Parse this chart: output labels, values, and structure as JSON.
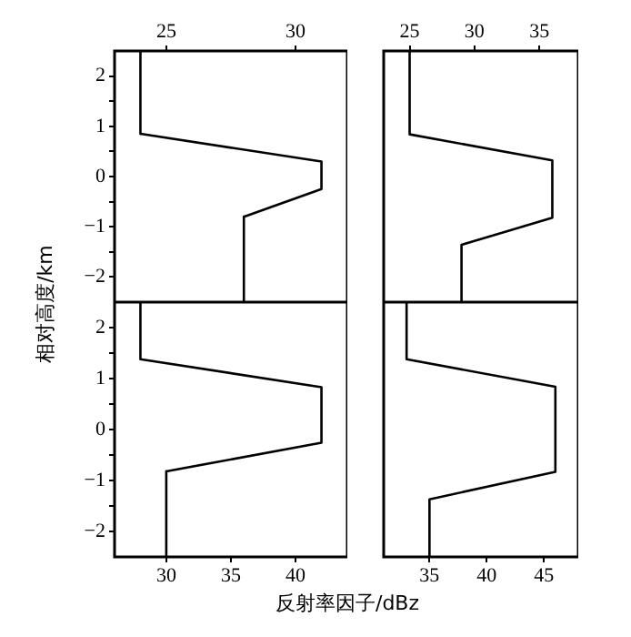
{
  "chart_data": [
    {
      "type": "line",
      "ylabel": "相对高度/km",
      "xlim": [
        23,
        32
      ],
      "xticks": [
        25,
        30
      ],
      "ylim": [
        -2.5,
        2.5
      ],
      "yticks": [
        {
          "value": -2,
          "label": "−2"
        },
        {
          "value": -1.5,
          "label": null
        },
        {
          "value": -1,
          "label": "−1"
        },
        {
          "value": -0.5,
          "label": null
        },
        0,
        {
          "value": 0.5,
          "label": null
        },
        1,
        {
          "value": 1.5,
          "label": null
        },
        2
      ],
      "grid": false,
      "legend": false,
      "marker": "none",
      "line_style": "solid",
      "series": [
        {
          "color": "#000000",
          "x": [
            24,
            24,
            31,
            31,
            28,
            28
          ],
          "values": [
            2.5,
            0.85,
            0.3,
            -0.25,
            -0.8,
            -2.5
          ]
        }
      ]
    },
    {
      "type": "line",
      "xlim": [
        23,
        38
      ],
      "xticks": [
        25,
        30,
        35
      ],
      "ylim": [
        -2.5,
        2.5
      ],
      "tick_labels": "x",
      "grid": false,
      "legend": false,
      "marker": "none",
      "line_style": "solid",
      "series": [
        {
          "color": "#000000",
          "x": [
            25,
            25,
            36,
            36,
            29,
            29
          ],
          "values": [
            2.5,
            0.84,
            0.32,
            -0.82,
            -1.36,
            -2.5
          ]
        }
      ]
    },
    {
      "type": "line",
      "xlabel": "反射率因子/dBz",
      "xlim": [
        26,
        44
      ],
      "xticks": [
        30,
        35,
        40
      ],
      "ylim": [
        -2.5,
        2.5
      ],
      "yticks": [
        {
          "value": -2,
          "label": "−2"
        },
        {
          "value": -1.5,
          "label": null
        },
        {
          "value": -1,
          "label": "−1"
        },
        {
          "value": -0.5,
          "label": null
        },
        0,
        {
          "value": 0.5,
          "label": null
        },
        1,
        {
          "value": 1.5,
          "label": null
        },
        2
      ],
      "grid": false,
      "legend": false,
      "marker": "none",
      "line_style": "solid",
      "series": [
        {
          "color": "#000000",
          "x": [
            28,
            28,
            42,
            42,
            30,
            30
          ],
          "values": [
            2.5,
            1.38,
            0.83,
            -0.26,
            -0.82,
            -2.5
          ]
        }
      ]
    },
    {
      "type": "line",
      "xlim": [
        31,
        48
      ],
      "xticks": [
        35,
        40,
        45
      ],
      "ylim": [
        -2.5,
        2.5
      ],
      "tick_labels": "x",
      "grid": false,
      "legend": false,
      "marker": "none",
      "line_style": "solid",
      "series": [
        {
          "color": "#000000",
          "x": [
            33,
            33,
            46,
            46,
            35,
            35
          ],
          "values": [
            2.5,
            1.38,
            0.84,
            -0.83,
            -1.37,
            -2.5
          ]
        }
      ]
    }
  ]
}
